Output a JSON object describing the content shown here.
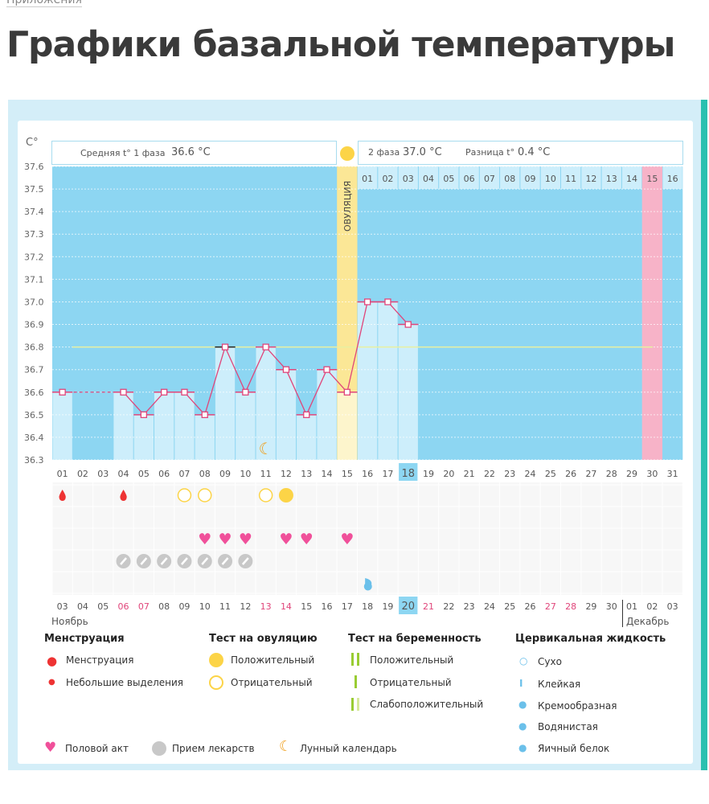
{
  "breadcrumb": "Приложения",
  "title": "Графики базальной температуры",
  "chart_data": {
    "type": "line",
    "ylabel": "С°",
    "ylim": [
      36.3,
      37.6
    ],
    "yticks": [
      "37.6",
      "37.5",
      "37.4",
      "37.3",
      "37.2",
      "37.1",
      "37.0",
      "36.9",
      "36.8",
      "36.7",
      "36.6",
      "36.5",
      "36.4",
      "36.3"
    ],
    "cycle_days": [
      "01",
      "02",
      "03",
      "04",
      "05",
      "06",
      "07",
      "08",
      "09",
      "10",
      "11",
      "12",
      "13",
      "14",
      "15",
      "16",
      "17",
      "18",
      "19",
      "20",
      "21",
      "22",
      "23",
      "24",
      "25",
      "26",
      "27",
      "28",
      "29",
      "30",
      "31"
    ],
    "temperatures": [
      36.6,
      null,
      null,
      36.6,
      36.5,
      36.6,
      36.6,
      36.5,
      36.8,
      36.6,
      36.8,
      36.7,
      36.5,
      36.7,
      36.6,
      37.0,
      37.0,
      36.9,
      null,
      null,
      null,
      null,
      null,
      null,
      null,
      null,
      null,
      null,
      null,
      null,
      null
    ],
    "cover_line": 36.8,
    "ovulation_day": 15,
    "highlight_day": 18,
    "pink_day": 30,
    "moon_day": 11,
    "phase2_days": [
      "01",
      "02",
      "03",
      "04",
      "05",
      "06",
      "07",
      "08",
      "09",
      "10",
      "11",
      "12",
      "13",
      "14",
      "15",
      "16"
    ],
    "phase2_pink_day": "15"
  },
  "header": {
    "phase1": "Средняя t° 1 фаза",
    "phase1_val": "36.6 °С",
    "phase2": "2 фаза",
    "phase2_val": "37.0 °С",
    "diff": "Разница t°",
    "diff_val": "0.4 °С",
    "ovulation": "ОВУЛЯЦИЯ"
  },
  "calendar": {
    "dates": [
      "03",
      "04",
      "05",
      "06",
      "07",
      "08",
      "09",
      "10",
      "11",
      "12",
      "13",
      "14",
      "15",
      "16",
      "17",
      "18",
      "19",
      "20",
      "21",
      "22",
      "23",
      "24",
      "25",
      "26",
      "27",
      "28",
      "29",
      "30",
      "01",
      "02",
      "03"
    ],
    "weekend_idx": [
      3,
      4,
      10,
      11,
      18,
      24,
      25
    ],
    "today_idx": 17,
    "month1": "Ноябрь",
    "month2": "Декабрь",
    "menstruation_days": [
      1,
      4
    ],
    "ovulation_negative_days": [
      7,
      8,
      11
    ],
    "ovulation_positive_days": [
      12
    ],
    "intercourse_days": [
      8,
      9,
      10,
      12,
      13,
      15
    ],
    "medication_days": [
      4,
      5,
      6,
      7,
      8,
      9,
      10
    ],
    "cervical_creamy_days": [
      16
    ]
  },
  "legend": {
    "menstr_h": "Менструация",
    "menstr": "Менструация",
    "spotting": "Небольшие выделения",
    "ovu_h": "Тест на овуляцию",
    "ovu_pos": "Положительный",
    "ovu_neg": "Отрицательный",
    "preg_h": "Тест на беременность",
    "preg_pos": "Положительный",
    "preg_neg": "Отрицательный",
    "preg_weak": "Слабоположительный",
    "cerv_h": "Цервикальная жидкость",
    "dry": "Сухо",
    "sticky": "Клейкая",
    "creamy": "Кремообразная",
    "watery": "Водянистая",
    "eggwhite": "Яичный белок",
    "sex": "Половой акт",
    "meds": "Прием лекарств",
    "moon": "Лунный календарь"
  },
  "colors": {
    "plot": "#8dd6f2",
    "bar": "#cdeefb",
    "line": "#e0457a",
    "ovulation": "#fbe796",
    "pink": "#f7b3c8",
    "weekend": "#e0457a"
  }
}
